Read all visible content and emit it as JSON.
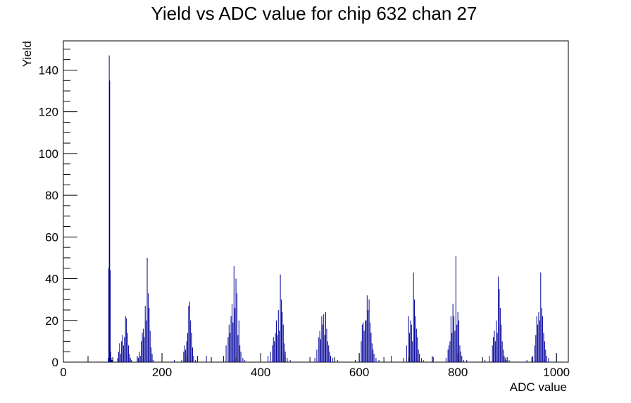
{
  "chart_data": {
    "type": "bar",
    "title": "Yield vs ADC value for chip 632 chan 27",
    "xlabel": "ADC value",
    "ylabel": "Yield",
    "xlim": [
      0,
      1024
    ],
    "ylim": [
      0,
      154
    ],
    "grid": false,
    "x_ticks": [
      0,
      200,
      400,
      600,
      800,
      1000
    ],
    "y_ticks": [
      0,
      20,
      40,
      60,
      80,
      100,
      120,
      140
    ],
    "series": [
      {
        "color": "#000099",
        "x": [
          50,
          91,
          92,
          93,
          94,
          95,
          96,
          97,
          98,
          99,
          110,
          112,
          114,
          116,
          118,
          120,
          122,
          124,
          126,
          128,
          130,
          132,
          134,
          136,
          138,
          150,
          152,
          154,
          156,
          158,
          160,
          162,
          164,
          166,
          168,
          170,
          172,
          174,
          176,
          178,
          180,
          182,
          200,
          225,
          240,
          244,
          246,
          248,
          250,
          252,
          254,
          256,
          258,
          260,
          262,
          264,
          268,
          272,
          290,
          325,
          330,
          334,
          336,
          338,
          340,
          342,
          344,
          346,
          348,
          350,
          352,
          354,
          356,
          358,
          360,
          364,
          368,
          415,
          420,
          424,
          426,
          428,
          430,
          432,
          434,
          436,
          438,
          440,
          442,
          444,
          446,
          448,
          450,
          454,
          460,
          510,
          514,
          518,
          520,
          522,
          524,
          526,
          528,
          530,
          532,
          534,
          536,
          538,
          540,
          542,
          546,
          550,
          556,
          592,
          600,
          604,
          606,
          608,
          610,
          612,
          614,
          616,
          618,
          620,
          622,
          624,
          626,
          628,
          630,
          634,
          640,
          665,
          690,
          696,
          700,
          702,
          704,
          706,
          708,
          710,
          712,
          714,
          716,
          718,
          720,
          722,
          726,
          730,
          748,
          776,
          780,
          782,
          784,
          786,
          788,
          790,
          792,
          794,
          796,
          798,
          800,
          802,
          804,
          806,
          808,
          812,
          818,
          855,
          864,
          870,
          872,
          874,
          876,
          878,
          880,
          882,
          884,
          886,
          888,
          890,
          892,
          894,
          896,
          898,
          904,
          940,
          952,
          956,
          958,
          960,
          962,
          964,
          966,
          968,
          970,
          972,
          974,
          976,
          978,
          980,
          984,
          1000
        ],
        "values": [
          3,
          2,
          45,
          147,
          135,
          44,
          5,
          2,
          1,
          1,
          2,
          5,
          9,
          4,
          10,
          13,
          8,
          12,
          22,
          21,
          14,
          8,
          4,
          2,
          1,
          3,
          2,
          5,
          3,
          10,
          14,
          16,
          12,
          27,
          20,
          50,
          33,
          26,
          15,
          7,
          4,
          1,
          4,
          1,
          1,
          5,
          8,
          6,
          10,
          14,
          27,
          29,
          20,
          14,
          7,
          3,
          1,
          3,
          3,
          3,
          8,
          12,
          18,
          14,
          22,
          28,
          19,
          46,
          26,
          40,
          33,
          13,
          20,
          8,
          5,
          2,
          1,
          3,
          5,
          8,
          12,
          10,
          14,
          20,
          13,
          25,
          15,
          42,
          30,
          24,
          18,
          9,
          5,
          2,
          1,
          2,
          6,
          12,
          15,
          11,
          22,
          18,
          23,
          13,
          24,
          16,
          10,
          8,
          5,
          3,
          2,
          1,
          1,
          1,
          4,
          10,
          18,
          19,
          15,
          20,
          20,
          32,
          25,
          30,
          19,
          14,
          9,
          6,
          4,
          2,
          1,
          3,
          2,
          8,
          22,
          14,
          20,
          18,
          10,
          43,
          30,
          22,
          16,
          12,
          6,
          4,
          2,
          1,
          3,
          2,
          6,
          8,
          10,
          22,
          14,
          28,
          22,
          15,
          51,
          18,
          24,
          20,
          8,
          5,
          3,
          1,
          1,
          1,
          3,
          8,
          12,
          15,
          10,
          20,
          14,
          41,
          35,
          26,
          18,
          10,
          6,
          3,
          2,
          1,
          1,
          1,
          3,
          8,
          13,
          22,
          18,
          24,
          20,
          43,
          26,
          22,
          14,
          10,
          6,
          3,
          2,
          4
        ]
      }
    ]
  }
}
